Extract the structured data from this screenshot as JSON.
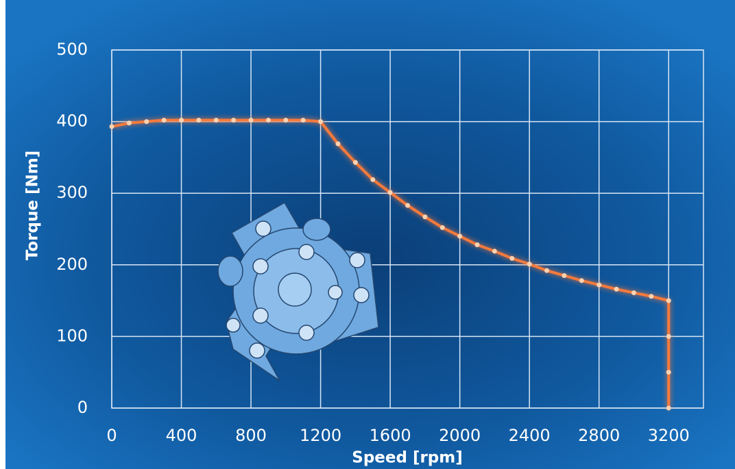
{
  "chart_data": {
    "type": "line",
    "x_label": "Speed [rpm]",
    "y_label": "Torque  [Nm]",
    "x": [
      0,
      100,
      200,
      300,
      400,
      500,
      600,
      700,
      800,
      900,
      1000,
      1100,
      1200,
      1300,
      1400,
      1500,
      1600,
      1700,
      1800,
      1900,
      2000,
      2100,
      2200,
      2300,
      2400,
      2500,
      2600,
      2700,
      2800,
      2900,
      3000,
      3100,
      3200,
      3200,
      3200,
      3200
    ],
    "values": [
      393,
      398,
      400,
      402,
      402,
      402,
      402,
      402,
      402,
      402,
      402,
      402,
      400,
      369,
      343,
      319,
      301,
      283,
      267,
      252,
      240,
      228,
      219,
      209,
      201,
      192,
      185,
      178,
      172,
      166,
      161,
      156,
      150,
      100,
      50,
      0
    ],
    "color": "#f47a3c",
    "xlim": [
      0,
      3400
    ],
    "xticks": [
      0,
      400,
      800,
      1200,
      1600,
      2000,
      2400,
      2800,
      3200
    ],
    "ylim": [
      0,
      500
    ],
    "yticks": [
      0,
      100,
      200,
      300,
      400,
      500
    ],
    "grid": true
  }
}
